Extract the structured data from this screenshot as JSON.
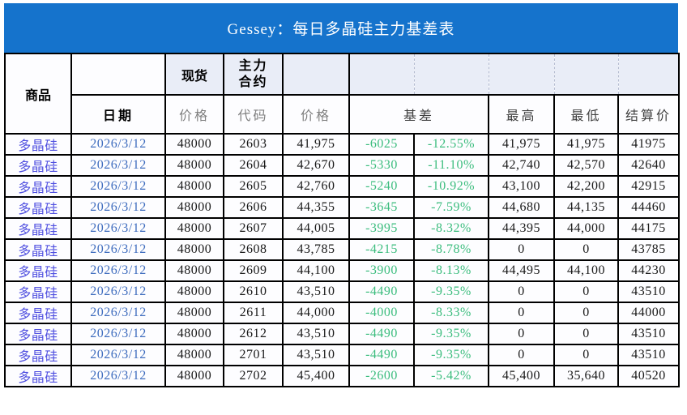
{
  "title": "Gessey：每日多晶硅主力基差表",
  "header": {
    "commodity": "商品",
    "date": "日期",
    "spot": "现货",
    "main_contract_lines": [
      "主力",
      "合约"
    ],
    "spot_price": "价格",
    "code": "代码",
    "price": "价格",
    "basis": "基差",
    "high": "最高",
    "low": "最低",
    "settlement": "结算价"
  },
  "colors": {
    "title_bg": "#1573cc",
    "header_fill": "#e9edf7",
    "negative_green": "#3cbd7e",
    "date_blue": "#3e6cbe",
    "commodity_blue": "#5050e0",
    "grid_border": "#000000"
  },
  "rows": [
    {
      "commodity": "多晶硅",
      "date": "2026/3/12",
      "spot_price": "48000",
      "code": "2603",
      "price": "41,975",
      "basis": "-6025",
      "basis_pct": "-12.55%",
      "high": "41,975",
      "low": "41,975",
      "settlement": "41975"
    },
    {
      "commodity": "多晶硅",
      "date": "2026/3/12",
      "spot_price": "48000",
      "code": "2604",
      "price": "42,670",
      "basis": "-5330",
      "basis_pct": "-11.10%",
      "high": "42,740",
      "low": "42,570",
      "settlement": "42640"
    },
    {
      "commodity": "多晶硅",
      "date": "2026/3/12",
      "spot_price": "48000",
      "code": "2605",
      "price": "42,760",
      "basis": "-5240",
      "basis_pct": "-10.92%",
      "high": "43,100",
      "low": "42,200",
      "settlement": "42915"
    },
    {
      "commodity": "多晶硅",
      "date": "2026/3/12",
      "spot_price": "48000",
      "code": "2606",
      "price": "44,355",
      "basis": "-3645",
      "basis_pct": "-7.59%",
      "high": "44,680",
      "low": "44,135",
      "settlement": "44460"
    },
    {
      "commodity": "多晶硅",
      "date": "2026/3/12",
      "spot_price": "48000",
      "code": "2607",
      "price": "44,005",
      "basis": "-3995",
      "basis_pct": "-8.32%",
      "high": "44,395",
      "low": "44,000",
      "settlement": "44175"
    },
    {
      "commodity": "多晶硅",
      "date": "2026/3/12",
      "spot_price": "48000",
      "code": "2608",
      "price": "43,785",
      "basis": "-4215",
      "basis_pct": "-8.78%",
      "high": "0",
      "low": "0",
      "settlement": "43785"
    },
    {
      "commodity": "多晶硅",
      "date": "2026/3/12",
      "spot_price": "48000",
      "code": "2609",
      "price": "44,100",
      "basis": "-3900",
      "basis_pct": "-8.13%",
      "high": "44,495",
      "low": "44,100",
      "settlement": "44230"
    },
    {
      "commodity": "多晶硅",
      "date": "2026/3/12",
      "spot_price": "48000",
      "code": "2610",
      "price": "43,510",
      "basis": "-4490",
      "basis_pct": "-9.35%",
      "high": "0",
      "low": "0",
      "settlement": "43510"
    },
    {
      "commodity": "多晶硅",
      "date": "2026/3/12",
      "spot_price": "48000",
      "code": "2611",
      "price": "44,000",
      "basis": "-4000",
      "basis_pct": "-8.33%",
      "high": "0",
      "low": "0",
      "settlement": "44000"
    },
    {
      "commodity": "多晶硅",
      "date": "2026/3/12",
      "spot_price": "48000",
      "code": "2612",
      "price": "43,510",
      "basis": "-4490",
      "basis_pct": "-9.35%",
      "high": "0",
      "low": "0",
      "settlement": "43510"
    },
    {
      "commodity": "多晶硅",
      "date": "2026/3/12",
      "spot_price": "48000",
      "code": "2701",
      "price": "43,510",
      "basis": "-4490",
      "basis_pct": "-9.35%",
      "high": "0",
      "low": "0",
      "settlement": "43510"
    },
    {
      "commodity": "多晶硅",
      "date": "2026/3/12",
      "spot_price": "48000",
      "code": "2702",
      "price": "45,400",
      "basis": "-2600",
      "basis_pct": "-5.42%",
      "high": "45,400",
      "low": "35,640",
      "settlement": "40520"
    }
  ]
}
